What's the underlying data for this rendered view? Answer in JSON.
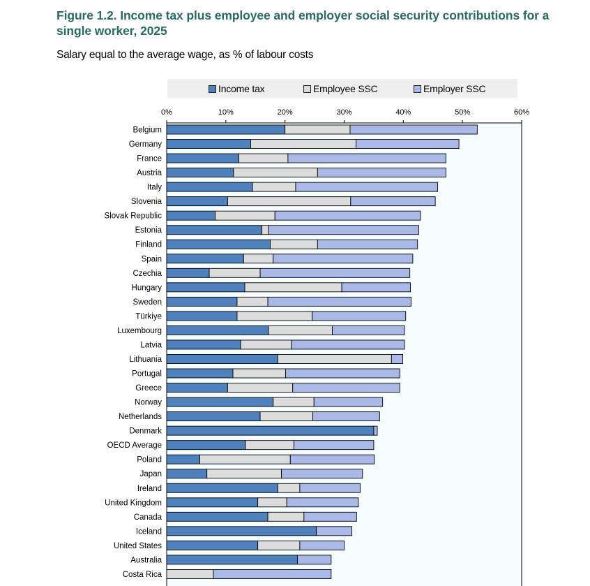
{
  "title": "Figure 1.2. Income tax plus employee and employer social security contributions for a single worker, 2025",
  "subtitle": "Salary equal to the average wage, as % of labour costs",
  "colors": {
    "income_tax": "#4f81bd",
    "employee_ssc": "#dcdcdc",
    "employer_ssc": "#a9b8e6",
    "plot_bg": "#f5fdfd"
  },
  "chart_data": {
    "type": "bar",
    "orientation": "horizontal",
    "stacked": true,
    "title": "Figure 1.2. Income tax plus employee and employer social security contributions for a single worker, 2025",
    "subtitle": "Salary equal to the average wage, as % of labour costs",
    "xlabel": "",
    "ylabel": "",
    "xlim": [
      0,
      60
    ],
    "x_ticks": [
      "0%",
      "10%",
      "20%",
      "30%",
      "40%",
      "50%",
      "60%"
    ],
    "legend_position": "top",
    "categories": [
      "Belgium",
      "Germany",
      "France",
      "Austria",
      "Italy",
      "Slovenia",
      "Slovak Republic",
      "Estonia",
      "Finland",
      "Spain",
      "Czechia",
      "Hungary",
      "Sweden",
      "Türkiye",
      "Luxembourg",
      "Latvia",
      "Lithuania",
      "Portugal",
      "Greece",
      "Norway",
      "Netherlands",
      "Denmark",
      "OECD Average",
      "Poland",
      "Japan",
      "Ireland",
      "United Kingdom",
      "Canada",
      "Iceland",
      "United States",
      "Australia",
      "Costa Rica"
    ],
    "series": [
      {
        "name": "Income tax",
        "values": [
          20.0,
          14.2,
          12.2,
          11.3,
          14.5,
          10.3,
          8.2,
          16.1,
          17.5,
          13.0,
          7.2,
          13.2,
          11.9,
          11.9,
          17.2,
          12.5,
          18.8,
          11.2,
          10.3,
          18.0,
          15.8,
          35.0,
          13.3,
          5.6,
          6.8,
          18.8,
          15.4,
          17.1,
          25.3,
          15.4,
          22.1,
          0.0
        ]
      },
      {
        "name": "Employee SSC",
        "values": [
          11.0,
          17.8,
          8.3,
          14.2,
          7.3,
          20.8,
          10.1,
          1.1,
          8.0,
          5.0,
          8.6,
          16.4,
          5.2,
          12.7,
          10.8,
          8.6,
          19.2,
          8.9,
          11.0,
          6.9,
          8.9,
          0.0,
          8.2,
          15.3,
          12.6,
          3.7,
          4.9,
          6.1,
          0.0,
          7.1,
          0.0,
          7.9
        ]
      },
      {
        "name": "Employer SSC",
        "values": [
          21.5,
          17.4,
          26.7,
          21.7,
          24.0,
          14.3,
          24.6,
          25.4,
          16.9,
          23.6,
          25.3,
          11.6,
          24.2,
          15.8,
          12.2,
          19.1,
          1.9,
          19.3,
          18.1,
          11.6,
          11.3,
          0.6,
          13.5,
          14.2,
          13.7,
          10.2,
          12.1,
          8.9,
          6.0,
          7.5,
          5.7,
          19.9
        ]
      }
    ]
  }
}
